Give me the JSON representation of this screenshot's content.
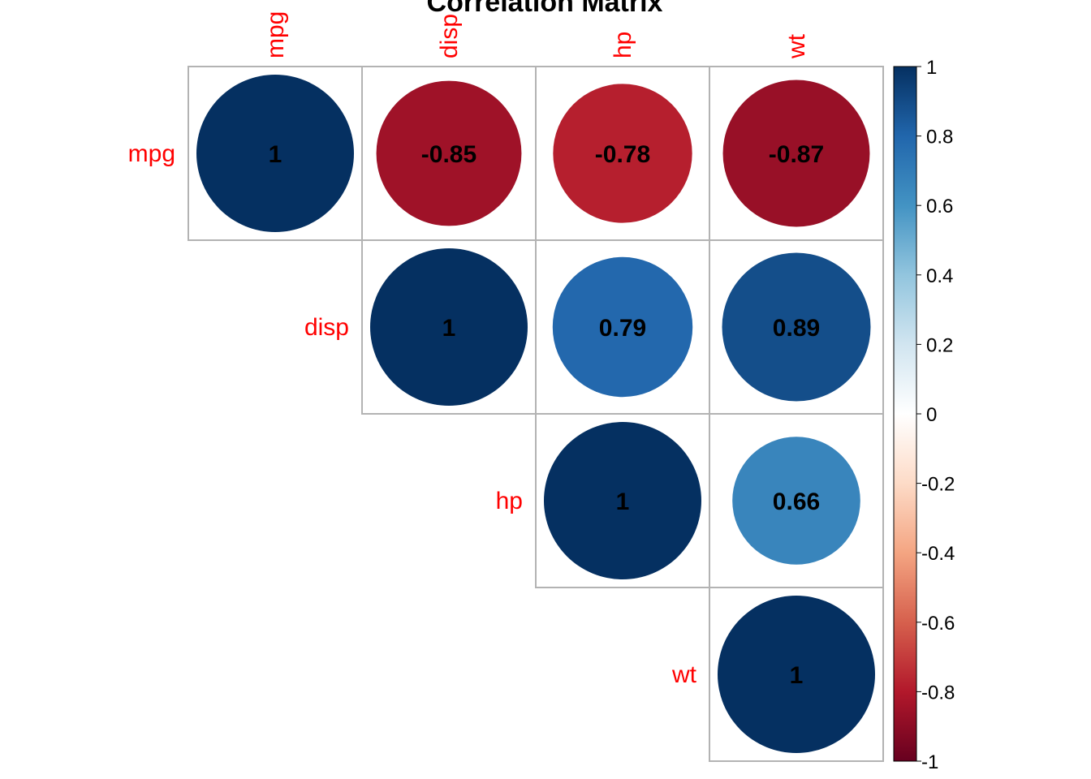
{
  "chart_data": {
    "type": "heatmap",
    "title": "Correlation Matrix",
    "variables": [
      "mpg",
      "disp",
      "hp",
      "wt"
    ],
    "matrix": [
      [
        1,
        -0.85,
        -0.78,
        -0.87
      ],
      [
        -0.85,
        1,
        0.79,
        0.89
      ],
      [
        -0.78,
        0.79,
        1,
        0.66
      ],
      [
        -0.87,
        0.89,
        0.66,
        1
      ]
    ],
    "display": "upper",
    "method": "circle",
    "label_colors": "#FF0000",
    "number_color": "#000000",
    "grid": true,
    "legend": {
      "position": "right",
      "min": -1,
      "max": 1,
      "ticks": [
        "1",
        "0.8",
        "0.6",
        "0.4",
        "0.2",
        "0",
        "-0.2",
        "-0.4",
        "-0.6",
        "-0.8",
        "-1"
      ],
      "palette": [
        "#67001F",
        "#B2182B",
        "#D6604D",
        "#F4A582",
        "#FDDBC7",
        "#FFFFFF",
        "#D1E5F0",
        "#92C5DE",
        "#4393C3",
        "#2166AC",
        "#053061"
      ]
    }
  }
}
